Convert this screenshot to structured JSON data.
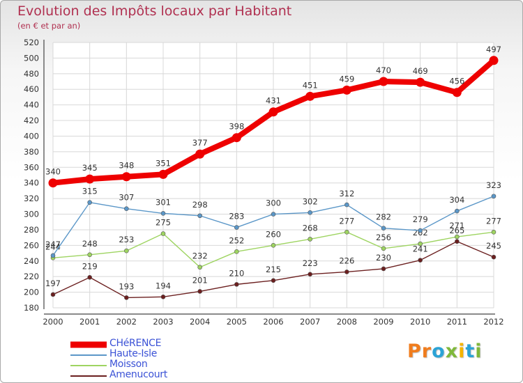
{
  "header": {
    "title": "Evolution des Impôts locaux par Habitant",
    "subtitle": "(en € et par an)"
  },
  "logo": {
    "letters": [
      "P",
      "r",
      "o",
      "x",
      "i",
      "t",
      "i"
    ],
    "colors": [
      "#f07d1e",
      "#f07d1e",
      "#2ba3d6",
      "#7fb83a",
      "#f5b400",
      "#2ba3d6",
      "#7fb83a"
    ]
  },
  "chart_data": {
    "type": "line",
    "x": [
      "2000",
      "2001",
      "2002",
      "2003",
      "2004",
      "2005",
      "2006",
      "2007",
      "2008",
      "2009",
      "2010",
      "2011",
      "2012"
    ],
    "ylim": [
      180,
      520
    ],
    "yticks": [
      180,
      200,
      220,
      240,
      260,
      280,
      300,
      320,
      340,
      360,
      380,
      400,
      420,
      440,
      460,
      480,
      500,
      520
    ],
    "grid": true,
    "legend_position": "bottom-left",
    "series": [
      {
        "name": "Amenucourt",
        "color": "#6b1f1f",
        "values": [
          197,
          219,
          193,
          194,
          201,
          210,
          215,
          223,
          226,
          230,
          241,
          265,
          245
        ]
      },
      {
        "name": "Moisson",
        "color": "#9ed461",
        "values": [
          244,
          248,
          253,
          275,
          232,
          252,
          260,
          268,
          277,
          256,
          262,
          271,
          277
        ]
      },
      {
        "name": "Haute-Isle",
        "color": "#5b97c8",
        "values": [
          247,
          315,
          307,
          301,
          298,
          283,
          300,
          302,
          312,
          282,
          279,
          304,
          323
        ]
      },
      {
        "name": "CHéRENCE",
        "color": "#ee0000",
        "values": [
          340,
          345,
          348,
          351,
          377,
          398,
          431,
          451,
          459,
          470,
          469,
          456,
          497
        ]
      }
    ]
  }
}
